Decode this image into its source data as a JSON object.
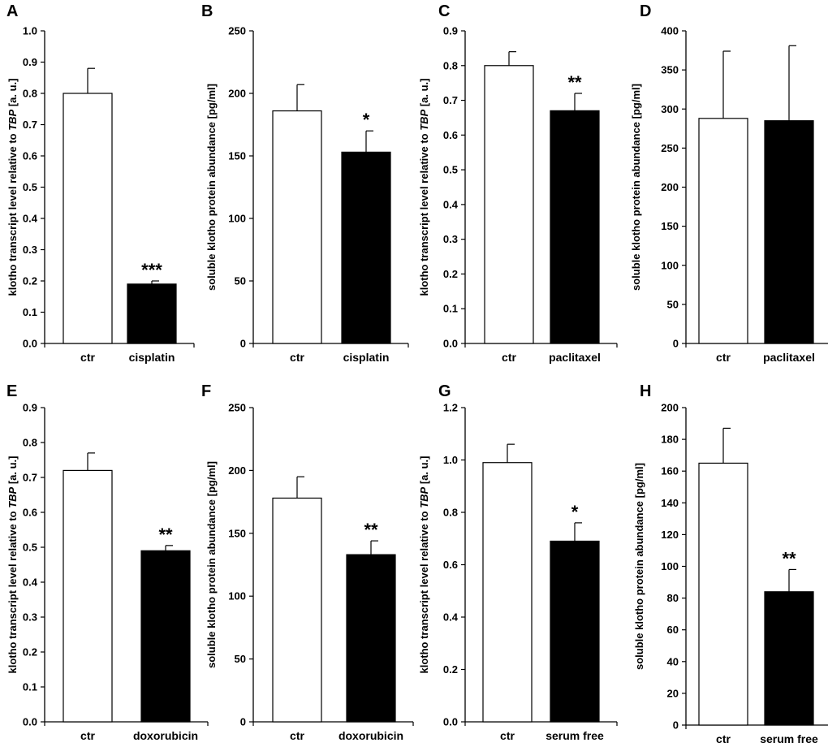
{
  "chart_data": [
    {
      "panel": "A",
      "type": "bar",
      "ylabel_prefix": "klotho transcript level relative to ",
      "ylabel_italic": "TBP",
      "ylabel_suffix": " [a. u.]",
      "categories": [
        "ctr",
        "cisplatin"
      ],
      "values": [
        0.8,
        0.19
      ],
      "errors": [
        0.08,
        0.01
      ],
      "significance": [
        "",
        "***"
      ],
      "ylim": [
        0,
        1.0
      ],
      "step": 0.1,
      "decimals": 1
    },
    {
      "panel": "B",
      "type": "bar",
      "ylabel_prefix": "soluble klotho protein abundance [pg/ml]",
      "ylabel_italic": "",
      "ylabel_suffix": "",
      "categories": [
        "ctr",
        "cisplatin"
      ],
      "values": [
        186,
        153
      ],
      "errors": [
        21,
        17
      ],
      "significance": [
        "",
        "*"
      ],
      "ylim": [
        0,
        250
      ],
      "step": 50,
      "decimals": 0
    },
    {
      "panel": "C",
      "type": "bar",
      "ylabel_prefix": "klotho transcript level relative to ",
      "ylabel_italic": "TBP",
      "ylabel_suffix": " [a. u.]",
      "categories": [
        "ctr",
        "paclitaxel"
      ],
      "values": [
        0.8,
        0.67
      ],
      "errors": [
        0.04,
        0.05
      ],
      "significance": [
        "",
        "**"
      ],
      "ylim": [
        0,
        0.9
      ],
      "step": 0.1,
      "decimals": 1
    },
    {
      "panel": "D",
      "type": "bar",
      "ylabel_prefix": "soluble klotho protein abundance [pg/ml]",
      "ylabel_italic": "",
      "ylabel_suffix": "",
      "categories": [
        "ctr",
        "paclitaxel"
      ],
      "values": [
        288,
        285
      ],
      "errors": [
        86,
        96
      ],
      "significance": [
        "",
        ""
      ],
      "ylim": [
        0,
        400
      ],
      "step": 50,
      "decimals": 0
    },
    {
      "panel": "E",
      "type": "bar",
      "ylabel_prefix": "klotho transcript level relative to ",
      "ylabel_italic": "TBP",
      "ylabel_suffix": " [a. u.]",
      "categories": [
        "ctr",
        "doxorubicin"
      ],
      "values": [
        0.72,
        0.49
      ],
      "errors": [
        0.05,
        0.015
      ],
      "significance": [
        "",
        "**"
      ],
      "ylim": [
        0,
        0.9
      ],
      "step": 0.1,
      "decimals": 1
    },
    {
      "panel": "F",
      "type": "bar",
      "ylabel_prefix": "soluble klotho protein abundance [pg/ml]",
      "ylabel_italic": "",
      "ylabel_suffix": "",
      "categories": [
        "ctr",
        "doxorubicin"
      ],
      "values": [
        178,
        133
      ],
      "errors": [
        17,
        11
      ],
      "significance": [
        "",
        "**"
      ],
      "ylim": [
        0,
        250
      ],
      "step": 50,
      "decimals": 0
    },
    {
      "panel": "G",
      "type": "bar",
      "ylabel_prefix": "klotho transcript level relative to ",
      "ylabel_italic": "TBP",
      "ylabel_suffix": " [a. u.]",
      "categories": [
        "ctr",
        "serum free"
      ],
      "values": [
        0.99,
        0.69
      ],
      "errors": [
        0.07,
        0.07
      ],
      "significance": [
        "",
        "*"
      ],
      "ylim": [
        0,
        1.2
      ],
      "step": 0.2,
      "decimals": 1
    },
    {
      "panel": "H",
      "type": "bar",
      "ylabel_prefix": "soluble klotho protein abundance [pg/ml]",
      "ylabel_italic": "",
      "ylabel_suffix": "",
      "categories": [
        "ctr",
        "serum free"
      ],
      "values": [
        165,
        84
      ],
      "errors": [
        22,
        14
      ],
      "significance": [
        "",
        "**"
      ],
      "ylim": [
        0,
        200
      ],
      "step": 20,
      "decimals": 0
    }
  ],
  "colors": {
    "control_bar": "#ffffff",
    "treatment_bar": "#000000",
    "axis": "#000000"
  }
}
